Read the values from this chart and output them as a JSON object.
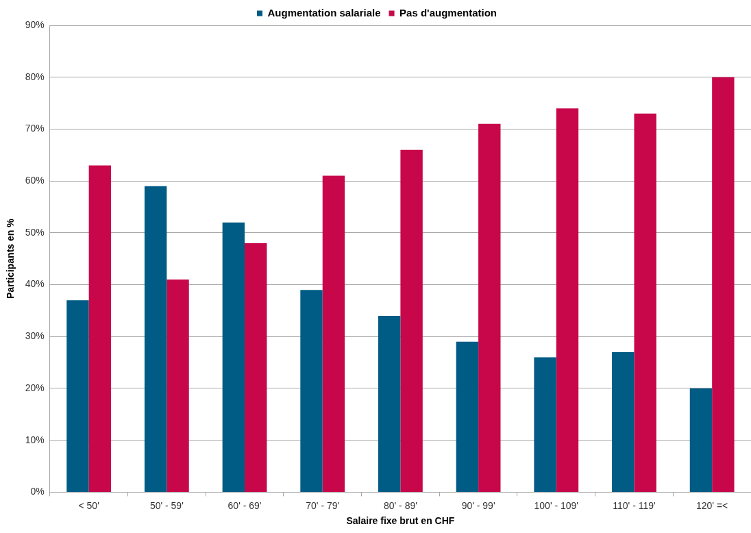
{
  "chart_data": {
    "type": "bar",
    "xlabel": "Salaire fixe brut en CHF",
    "ylabel": "Participants en %",
    "categories": [
      "< 50'",
      "50' - 59'",
      "60' - 69'",
      "70' - 79'",
      "80' - 89'",
      "90' - 99'",
      "100' - 109'",
      "110' - 119'",
      "120' =<"
    ],
    "series": [
      {
        "name": "Augmentation salariale",
        "color": "#005b85",
        "values": [
          37,
          59,
          52,
          39,
          34,
          29,
          26,
          27,
          20
        ]
      },
      {
        "name": "Pas d'augmentation",
        "color": "#c8074a",
        "values": [
          63,
          41,
          48,
          61,
          66,
          71,
          74,
          73,
          80
        ]
      }
    ],
    "ylim": [
      0,
      90
    ],
    "yticks": [
      {
        "value": 0,
        "label": "0%"
      },
      {
        "value": 10,
        "label": "10%"
      },
      {
        "value": 20,
        "label": "20%"
      },
      {
        "value": 30,
        "label": "30%"
      },
      {
        "value": 40,
        "label": "40%"
      },
      {
        "value": 50,
        "label": "50%"
      },
      {
        "value": 60,
        "label": "60%"
      },
      {
        "value": 70,
        "label": "70%"
      },
      {
        "value": 80,
        "label": "80%"
      },
      {
        "value": 90,
        "label": "90%"
      }
    ],
    "grid": "y",
    "legend": "top"
  }
}
